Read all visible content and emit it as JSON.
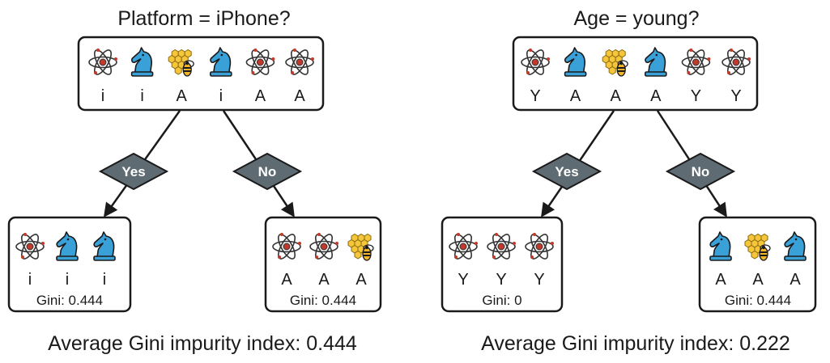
{
  "colors": {
    "diamond": "#5f6b72",
    "knight": "#3aa0d8",
    "bee_comb": "#f5c63a",
    "atom": "#333333",
    "atom_nucleus": "#c0392b"
  },
  "icons": {
    "atom": "atom-icon",
    "knight": "chess-knight-icon",
    "bee": "bee-honeycomb-icon"
  },
  "trees": [
    {
      "question": "Platform = iPhone?",
      "root": {
        "items": [
          {
            "icon": "atom",
            "label": "i"
          },
          {
            "icon": "knight",
            "label": "i"
          },
          {
            "icon": "bee",
            "label": "A"
          },
          {
            "icon": "knight",
            "label": "i"
          },
          {
            "icon": "atom",
            "label": "A"
          },
          {
            "icon": "atom",
            "label": "A"
          }
        ]
      },
      "yes_label": "Yes",
      "no_label": "No",
      "left": {
        "items": [
          {
            "icon": "atom",
            "label": "i"
          },
          {
            "icon": "knight",
            "label": "i"
          },
          {
            "icon": "knight",
            "label": "i"
          }
        ],
        "gini": "Gini: 0.444"
      },
      "right": {
        "items": [
          {
            "icon": "atom",
            "label": "A"
          },
          {
            "icon": "atom",
            "label": "A"
          },
          {
            "icon": "bee",
            "label": "A"
          }
        ],
        "gini": "Gini: 0.444"
      },
      "average": "Average Gini impurity index: 0.444"
    },
    {
      "question": "Age = young?",
      "root": {
        "items": [
          {
            "icon": "atom",
            "label": "Y"
          },
          {
            "icon": "knight",
            "label": "A"
          },
          {
            "icon": "bee",
            "label": "A"
          },
          {
            "icon": "knight",
            "label": "A"
          },
          {
            "icon": "atom",
            "label": "Y"
          },
          {
            "icon": "atom",
            "label": "Y"
          }
        ]
      },
      "yes_label": "Yes",
      "no_label": "No",
      "left": {
        "items": [
          {
            "icon": "atom",
            "label": "Y"
          },
          {
            "icon": "atom",
            "label": "Y"
          },
          {
            "icon": "atom",
            "label": "Y"
          }
        ],
        "gini": "Gini: 0"
      },
      "right": {
        "items": [
          {
            "icon": "knight",
            "label": "A"
          },
          {
            "icon": "bee",
            "label": "A"
          },
          {
            "icon": "knight",
            "label": "A"
          }
        ],
        "gini": "Gini: 0.444"
      },
      "average": "Average Gini impurity index: 0.222"
    }
  ]
}
